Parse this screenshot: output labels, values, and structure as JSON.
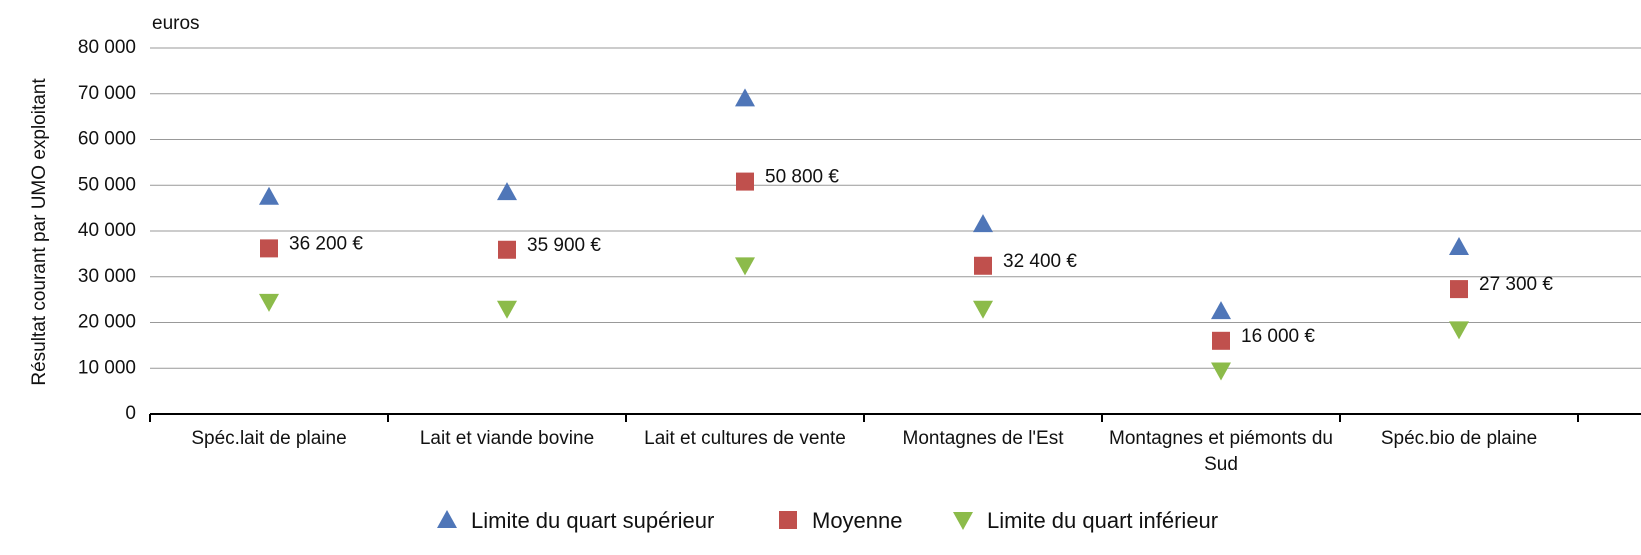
{
  "chart_data": {
    "type": "scatter",
    "unit_label": "euros",
    "y_label": "Résultat courant par UMO exploitant",
    "categories": [
      "Spéc.lait de plaine",
      "Lait et viande bovine",
      "Lait et cultures de vente",
      "Montagnes de l'Est",
      "Montagnes et piémonts du Sud",
      "Spéc.bio de plaine"
    ],
    "series": [
      {
        "name": "Limite du quart supérieur",
        "color": "#4f76b8",
        "marker": "triangle-up",
        "values": [
          47500,
          48500,
          69000,
          41500,
          22500,
          36500
        ]
      },
      {
        "name": "Moyenne",
        "color": "#c0504d",
        "marker": "square",
        "values": [
          36200,
          35900,
          50800,
          32400,
          16000,
          27300
        ],
        "value_labels": [
          "36 200 €",
          "35 900 €",
          "50 800 €",
          "32 400 €",
          "16 000 €",
          "27 300 €"
        ]
      },
      {
        "name": "Limite du quart inférieur",
        "color": "#8cbb4a",
        "marker": "triangle-down",
        "values": [
          24500,
          23000,
          32500,
          23000,
          9500,
          18500
        ]
      }
    ],
    "ylim": [
      0,
      80000
    ],
    "yticks": [
      0,
      {
        "value": 10000,
        "label": "10 000"
      },
      {
        "value": 20000,
        "label": "20 000"
      },
      {
        "value": 30000,
        "label": "30 000"
      },
      {
        "value": 40000,
        "label": "40 000"
      },
      {
        "value": 50000,
        "label": "50 000"
      },
      {
        "value": 60000,
        "label": "60 000"
      },
      {
        "value": 70000,
        "label": "70 000"
      },
      {
        "value": 80000,
        "label": "80 000"
      }
    ],
    "grid": true,
    "legend": "bottom"
  }
}
